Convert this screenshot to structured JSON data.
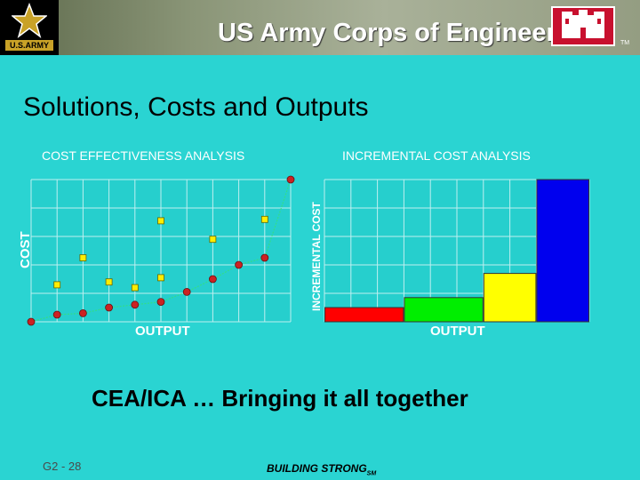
{
  "header": {
    "org_title": "US Army Corps of Engineers",
    "army_badge": "U.S.ARMY",
    "tm_mark": "TM",
    "bg_color": "#8a9577"
  },
  "slide_title": "Solutions, Costs and Outputs",
  "tagline": "CEA/ICA … Bringing it all together",
  "footer": {
    "slide_number": "G2 - 28",
    "building_strong": "BUILDING STRONG",
    "sm_mark": "SM"
  },
  "chart_data": [
    {
      "type": "scatter",
      "title": "COST EFFECTIVENESS ANALYSIS",
      "xlabel": "OUTPUT",
      "ylabel": "COST",
      "grid": true,
      "xlim": [
        0,
        10
      ],
      "ylim": [
        0,
        10
      ],
      "series": [
        {
          "marker": "circle",
          "color": "#cc2222",
          "connected": true,
          "line_color": "#33dd88",
          "points": [
            [
              0,
              0
            ],
            [
              1,
              0.5
            ],
            [
              2,
              0.6
            ],
            [
              3,
              1.0
            ],
            [
              4,
              1.2
            ],
            [
              5,
              1.4
            ],
            [
              6,
              2.1
            ],
            [
              7,
              3.0
            ],
            [
              8,
              4.0
            ],
            [
              9,
              4.5
            ],
            [
              10,
              10.0
            ]
          ]
        },
        {
          "marker": "square",
          "color": "#ffee00",
          "connected": false,
          "points": [
            [
              1,
              2.6
            ],
            [
              2,
              4.5
            ],
            [
              3,
              2.8
            ],
            [
              4,
              2.4
            ],
            [
              5,
              3.1
            ],
            [
              5,
              7.1
            ],
            [
              7,
              5.8
            ],
            [
              9,
              7.2
            ]
          ]
        }
      ]
    },
    {
      "type": "bar",
      "title": "INCREMENTAL COST ANALYSIS",
      "xlabel": "OUTPUT",
      "ylabel": "INCREMENTAL COST",
      "grid": true,
      "ylim": [
        0,
        10
      ],
      "bars": [
        {
          "width": 3,
          "value": 1.0,
          "color": "#ff0000"
        },
        {
          "width": 3,
          "value": 1.7,
          "color": "#00ee00"
        },
        {
          "width": 2,
          "value": 3.4,
          "color": "#ffff00"
        },
        {
          "width": 2,
          "value": 10.0,
          "color": "#0000ee"
        }
      ]
    }
  ]
}
